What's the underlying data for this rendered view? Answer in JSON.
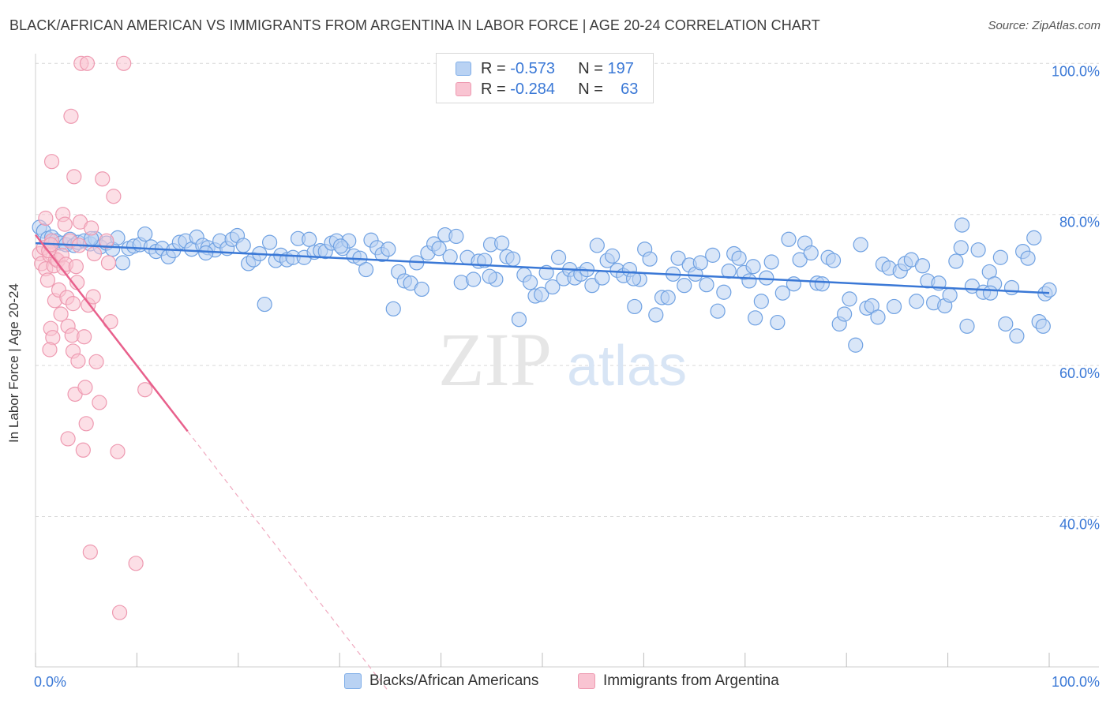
{
  "title": "BLACK/AFRICAN AMERICAN VS IMMIGRANTS FROM ARGENTINA IN LABOR FORCE | AGE 20-24 CORRELATION CHART",
  "source": "Source: ZipAtlas.com",
  "watermark": {
    "zip": "ZIP",
    "atlas": "atlas"
  },
  "legend": {
    "rows": [
      {
        "r_label": "R =",
        "r_value": "-0.573",
        "n_label": "N =",
        "n_value": "197"
      },
      {
        "r_label": "R =",
        "r_value": "-0.284",
        "n_label": "N =",
        "n_value": "63"
      }
    ]
  },
  "colors": {
    "blue": "#3a78d6",
    "blue_fill": "#b9d2f3",
    "pink": "#e8608c",
    "pink_fill": "#f9c4d2",
    "grid": "#d9d9d9",
    "axis_label": "#3a78d6"
  },
  "chart_data": {
    "type": "scatter",
    "title": "BLACK/AFRICAN AMERICAN VS IMMIGRANTS FROM ARGENTINA IN LABOR FORCE | AGE 20-24 CORRELATION CHART",
    "xlabel": "",
    "ylabel": "In Labor Force | Age 20-24",
    "xlim": [
      0,
      100
    ],
    "ylim": [
      18,
      103
    ],
    "x_tick_labels": [
      "0.0%",
      "100.0%"
    ],
    "y_ticks": [
      40,
      60,
      80,
      100
    ],
    "y_tick_labels": [
      "40.0%",
      "60.0%",
      "80.0%",
      "100.0%"
    ],
    "legend_position": "bottom-center",
    "series": [
      {
        "name": "Blacks/African Americans",
        "R": -0.573,
        "N": 197,
        "trend": {
          "x": [
            0,
            100
          ],
          "y": [
            76.2,
            69.6
          ]
        },
        "points": [
          [
            0.4,
            78.3
          ],
          [
            0.8,
            77.8
          ],
          [
            1.2,
            76.8
          ],
          [
            1.6,
            77.0
          ],
          [
            2.0,
            76.5
          ],
          [
            2.5,
            76.2
          ],
          [
            3.0,
            76.0
          ],
          [
            3.4,
            76.7
          ],
          [
            3.8,
            75.9
          ],
          [
            4.2,
            76.3
          ],
          [
            4.8,
            76.5
          ],
          [
            5.4,
            76.1
          ],
          [
            5.9,
            76.8
          ],
          [
            6.4,
            75.7
          ],
          [
            7.0,
            76.2
          ],
          [
            7.6,
            75.4
          ],
          [
            8.1,
            76.9
          ],
          [
            8.6,
            73.6
          ],
          [
            9.2,
            75.5
          ],
          [
            9.7,
            75.8
          ],
          [
            10.3,
            76.0
          ],
          [
            10.8,
            77.4
          ],
          [
            11.4,
            75.7
          ],
          [
            11.9,
            75.1
          ],
          [
            12.5,
            75.5
          ],
          [
            13.1,
            74.4
          ],
          [
            13.6,
            75.2
          ],
          [
            14.2,
            76.3
          ],
          [
            14.8,
            76.5
          ],
          [
            15.4,
            75.4
          ],
          [
            15.9,
            77.0
          ],
          [
            16.5,
            75.9
          ],
          [
            17.0,
            75.6
          ],
          [
            17.7,
            75.3
          ],
          [
            18.2,
            76.5
          ],
          [
            18.9,
            75.5
          ],
          [
            19.4,
            76.7
          ],
          [
            19.9,
            77.2
          ],
          [
            20.5,
            75.9
          ],
          [
            21.0,
            73.5
          ],
          [
            21.5,
            74.0
          ],
          [
            22.1,
            74.8
          ],
          [
            22.6,
            68.1
          ],
          [
            23.1,
            76.3
          ],
          [
            23.7,
            73.9
          ],
          [
            24.2,
            74.6
          ],
          [
            24.8,
            74.0
          ],
          [
            25.4,
            74.3
          ],
          [
            25.9,
            76.8
          ],
          [
            26.5,
            74.3
          ],
          [
            27.0,
            76.7
          ],
          [
            27.5,
            75.0
          ],
          [
            28.1,
            75.2
          ],
          [
            28.6,
            75.1
          ],
          [
            29.2,
            76.2
          ],
          [
            29.7,
            76.5
          ],
          [
            30.3,
            75.5
          ],
          [
            30.9,
            76.5
          ],
          [
            31.4,
            74.5
          ],
          [
            32.0,
            74.2
          ],
          [
            32.6,
            72.7
          ],
          [
            33.1,
            76.6
          ],
          [
            33.7,
            75.6
          ],
          [
            34.2,
            74.7
          ],
          [
            34.8,
            75.4
          ],
          [
            35.3,
            67.5
          ],
          [
            35.8,
            72.4
          ],
          [
            36.4,
            71.2
          ],
          [
            37.0,
            70.9
          ],
          [
            37.6,
            73.6
          ],
          [
            38.1,
            70.1
          ],
          [
            38.7,
            74.9
          ],
          [
            39.3,
            76.1
          ],
          [
            39.8,
            75.5
          ],
          [
            40.4,
            77.3
          ],
          [
            40.9,
            74.4
          ],
          [
            41.5,
            77.1
          ],
          [
            42.0,
            71.0
          ],
          [
            42.6,
            74.3
          ],
          [
            43.2,
            71.4
          ],
          [
            43.7,
            73.8
          ],
          [
            44.3,
            73.9
          ],
          [
            44.9,
            76.0
          ],
          [
            45.4,
            71.4
          ],
          [
            46.0,
            76.2
          ],
          [
            46.5,
            74.4
          ],
          [
            47.1,
            74.1
          ],
          [
            47.7,
            66.1
          ],
          [
            48.2,
            72.0
          ],
          [
            48.8,
            71.0
          ],
          [
            49.3,
            69.2
          ],
          [
            49.9,
            69.4
          ],
          [
            50.4,
            72.3
          ],
          [
            51.0,
            70.4
          ],
          [
            51.6,
            74.3
          ],
          [
            52.1,
            71.5
          ],
          [
            52.7,
            72.7
          ],
          [
            53.2,
            71.6
          ],
          [
            53.8,
            72.1
          ],
          [
            54.4,
            72.7
          ],
          [
            54.9,
            70.6
          ],
          [
            55.4,
            75.9
          ],
          [
            55.9,
            71.6
          ],
          [
            56.4,
            73.9
          ],
          [
            56.9,
            74.5
          ],
          [
            57.4,
            72.6
          ],
          [
            58.0,
            71.9
          ],
          [
            58.6,
            72.7
          ],
          [
            59.1,
            67.8
          ],
          [
            59.6,
            71.4
          ],
          [
            60.1,
            75.4
          ],
          [
            60.6,
            74.1
          ],
          [
            61.2,
            66.7
          ],
          [
            61.8,
            69.0
          ],
          [
            62.4,
            69.0
          ],
          [
            62.9,
            72.1
          ],
          [
            63.4,
            74.2
          ],
          [
            64.0,
            70.6
          ],
          [
            64.5,
            73.3
          ],
          [
            65.1,
            72.1
          ],
          [
            65.6,
            73.6
          ],
          [
            66.2,
            70.7
          ],
          [
            66.8,
            74.6
          ],
          [
            67.3,
            67.2
          ],
          [
            67.9,
            69.7
          ],
          [
            68.4,
            72.5
          ],
          [
            68.9,
            74.8
          ],
          [
            69.4,
            74.2
          ],
          [
            69.9,
            72.3
          ],
          [
            70.4,
            71.2
          ],
          [
            71.0,
            66.3
          ],
          [
            71.6,
            68.5
          ],
          [
            72.1,
            71.6
          ],
          [
            72.6,
            73.7
          ],
          [
            73.2,
            65.7
          ],
          [
            73.7,
            69.6
          ],
          [
            74.3,
            76.7
          ],
          [
            74.8,
            70.8
          ],
          [
            75.4,
            74.0
          ],
          [
            75.9,
            76.2
          ],
          [
            76.5,
            74.9
          ],
          [
            77.1,
            70.9
          ],
          [
            77.6,
            70.8
          ],
          [
            78.2,
            74.3
          ],
          [
            78.7,
            73.9
          ],
          [
            79.3,
            65.5
          ],
          [
            79.8,
            66.8
          ],
          [
            80.3,
            68.8
          ],
          [
            80.9,
            62.7
          ],
          [
            81.4,
            76.0
          ],
          [
            82.0,
            67.6
          ],
          [
            82.5,
            67.9
          ],
          [
            83.1,
            66.4
          ],
          [
            83.6,
            73.4
          ],
          [
            84.2,
            72.9
          ],
          [
            84.7,
            67.8
          ],
          [
            85.3,
            72.5
          ],
          [
            85.8,
            73.5
          ],
          [
            86.4,
            74.0
          ],
          [
            86.9,
            68.5
          ],
          [
            87.5,
            73.2
          ],
          [
            88.0,
            71.2
          ],
          [
            88.6,
            68.3
          ],
          [
            89.1,
            70.9
          ],
          [
            89.7,
            67.9
          ],
          [
            90.2,
            69.3
          ],
          [
            90.8,
            73.8
          ],
          [
            91.3,
            75.6
          ],
          [
            91.9,
            65.2
          ],
          [
            92.4,
            70.5
          ],
          [
            93.0,
            75.3
          ],
          [
            93.5,
            69.7
          ],
          [
            94.1,
            72.4
          ],
          [
            94.6,
            70.8
          ],
          [
            95.2,
            74.3
          ],
          [
            95.7,
            65.5
          ],
          [
            96.3,
            70.3
          ],
          [
            96.8,
            63.9
          ],
          [
            97.4,
            75.1
          ],
          [
            97.9,
            74.2
          ],
          [
            98.5,
            76.9
          ],
          [
            99.0,
            65.8
          ],
          [
            99.4,
            65.2
          ],
          [
            99.6,
            69.5
          ],
          [
            100.0,
            70.0
          ],
          [
            91.4,
            78.6
          ],
          [
            94.2,
            69.6
          ],
          [
            70.8,
            73.1
          ],
          [
            59.0,
            71.5
          ],
          [
            44.8,
            71.8
          ],
          [
            30.1,
            75.8
          ],
          [
            16.8,
            74.9
          ],
          [
            5.5,
            76.8
          ]
        ]
      },
      {
        "name": "Immigrants from Argentina",
        "R": -0.284,
        "N": 63,
        "trend": {
          "x": [
            0,
            15
          ],
          "y": [
            77.3,
            51.3
          ]
        },
        "trend_dashed": {
          "x": [
            15,
            34.8
          ],
          "y": [
            51.3,
            16.9
          ]
        },
        "points": [
          [
            0.4,
            74.8
          ],
          [
            0.6,
            73.5
          ],
          [
            0.8,
            75.6
          ],
          [
            1.0,
            72.8
          ],
          [
            1.2,
            71.3
          ],
          [
            1.4,
            74.6
          ],
          [
            1.6,
            76.5
          ],
          [
            1.8,
            73.2
          ],
          [
            2.0,
            74.1
          ],
          [
            1.0,
            79.5
          ],
          [
            1.3,
            75.2
          ],
          [
            1.5,
            76.0
          ],
          [
            2.2,
            73.9
          ],
          [
            1.5,
            64.9
          ],
          [
            1.7,
            63.7
          ],
          [
            1.4,
            62.1
          ],
          [
            1.6,
            87.0
          ],
          [
            1.9,
            68.6
          ],
          [
            2.3,
            70.0
          ],
          [
            2.5,
            66.8
          ],
          [
            2.6,
            74.6
          ],
          [
            2.8,
            72.9
          ],
          [
            2.7,
            80.0
          ],
          [
            2.9,
            78.7
          ],
          [
            3.0,
            73.4
          ],
          [
            3.1,
            69.0
          ],
          [
            3.2,
            65.2
          ],
          [
            3.2,
            50.3
          ],
          [
            3.4,
            76.5
          ],
          [
            3.5,
            93.0
          ],
          [
            3.6,
            64.0
          ],
          [
            3.7,
            68.2
          ],
          [
            3.7,
            61.9
          ],
          [
            3.8,
            85.0
          ],
          [
            3.9,
            56.2
          ],
          [
            4.0,
            73.1
          ],
          [
            4.1,
            71.0
          ],
          [
            4.2,
            60.6
          ],
          [
            4.3,
            75.9
          ],
          [
            4.4,
            79.0
          ],
          [
            4.7,
            48.8
          ],
          [
            4.8,
            63.8
          ],
          [
            4.9,
            57.1
          ],
          [
            5.0,
            52.3
          ],
          [
            5.2,
            68.0
          ],
          [
            5.4,
            35.3
          ],
          [
            5.5,
            78.2
          ],
          [
            5.7,
            69.1
          ],
          [
            5.8,
            74.8
          ],
          [
            6.0,
            60.5
          ],
          [
            6.3,
            55.1
          ],
          [
            6.6,
            84.7
          ],
          [
            7.0,
            76.5
          ],
          [
            7.2,
            73.6
          ],
          [
            7.4,
            65.8
          ],
          [
            7.7,
            82.4
          ],
          [
            8.1,
            48.6
          ],
          [
            8.3,
            27.3
          ],
          [
            8.7,
            100.0
          ],
          [
            9.9,
            33.8
          ],
          [
            10.8,
            56.8
          ],
          [
            4.5,
            100.0
          ],
          [
            5.1,
            100.0
          ]
        ]
      }
    ]
  },
  "bottom_legend": [
    "Blacks/African Americans",
    "Immigrants from Argentina"
  ]
}
